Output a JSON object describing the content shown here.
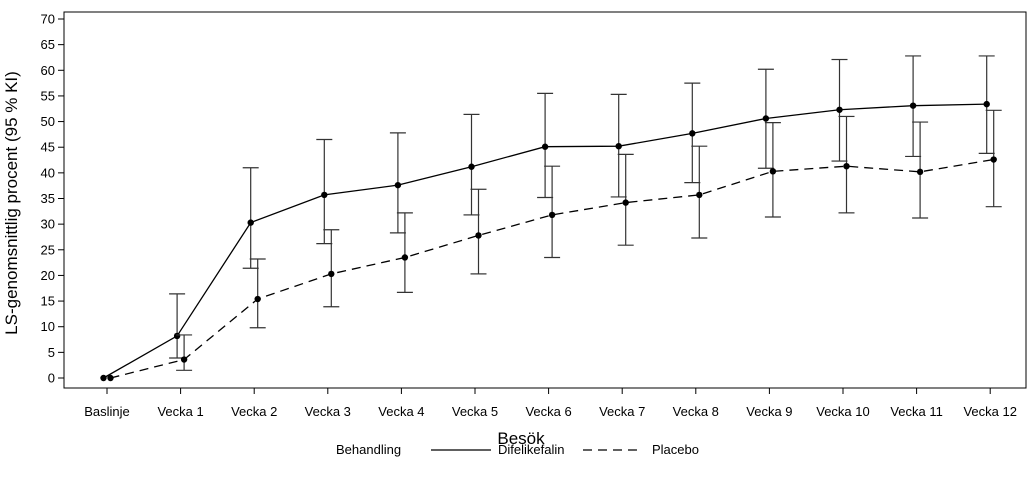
{
  "chart_data": {
    "type": "line",
    "xlabel": "Besök",
    "ylabel": "LS-genomsnittlig procent (95 % KI)",
    "ylim": [
      0,
      70
    ],
    "yticks": [
      0,
      5,
      10,
      15,
      20,
      25,
      30,
      35,
      40,
      45,
      50,
      55,
      60,
      65,
      70
    ],
    "categories": [
      "Baslinje",
      "Vecka 1",
      "Vecka 2",
      "Vecka 3",
      "Vecka 4",
      "Vecka 5",
      "Vecka 6",
      "Vecka 7",
      "Vecka 8",
      "Vecka 9",
      "Vecka 10",
      "Vecka 11",
      "Vecka 12"
    ],
    "grid": false,
    "legend": {
      "title": "Behandling",
      "position": "bottom"
    },
    "series": [
      {
        "name": "Difelikefalin",
        "style": "solid",
        "values": [
          0,
          8.2,
          30.3,
          35.7,
          37.6,
          41.2,
          45.1,
          45.2,
          47.7,
          50.6,
          52.3,
          53.1,
          53.4
        ],
        "lower": [
          null,
          3.9,
          21.4,
          26.2,
          28.3,
          31.8,
          35.2,
          35.3,
          38.1,
          40.9,
          42.3,
          43.2,
          43.8
        ],
        "upper": [
          null,
          16.4,
          41.0,
          46.5,
          47.8,
          51.4,
          55.5,
          55.3,
          57.5,
          60.2,
          62.1,
          62.8,
          62.8
        ]
      },
      {
        "name": "Placebo",
        "style": "dashed",
        "values": [
          0,
          3.6,
          15.4,
          20.3,
          23.5,
          27.8,
          31.8,
          34.2,
          35.7,
          40.3,
          41.3,
          40.2,
          42.6
        ],
        "lower": [
          null,
          1.5,
          9.8,
          13.9,
          16.7,
          20.3,
          23.5,
          25.9,
          27.3,
          31.4,
          32.2,
          31.2,
          33.4
        ],
        "upper": [
          null,
          8.4,
          23.2,
          28.9,
          32.2,
          36.8,
          41.3,
          43.6,
          45.2,
          49.8,
          51.0,
          49.9,
          52.2
        ]
      }
    ],
    "colors": {
      "line": "#000000",
      "errorbar": "#333333"
    }
  }
}
